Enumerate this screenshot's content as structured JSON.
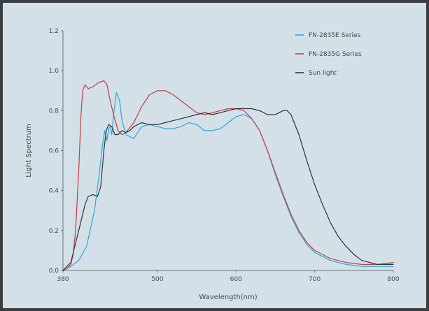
{
  "chart_data": {
    "type": "line",
    "title": "",
    "xlabel": "Wavelength(nm)",
    "ylabel": "Light Spectrum",
    "xlim": [
      380,
      800
    ],
    "ylim": [
      0,
      1.2
    ],
    "x_ticks": [
      380,
      500,
      600,
      700,
      800
    ],
    "y_ticks": [
      "0.0",
      "0.2",
      "0.4",
      "0.6",
      "0.8",
      "1.0",
      "1.2"
    ],
    "grid": false,
    "legend_position": "top-right",
    "series": [
      {
        "name": "FN-2835E Series",
        "color": "#2aa8dc",
        "points": [
          [
            380,
            0
          ],
          [
            385,
            0.01
          ],
          [
            390,
            0.02
          ],
          [
            400,
            0.05
          ],
          [
            410,
            0.12
          ],
          [
            420,
            0.3
          ],
          [
            425,
            0.45
          ],
          [
            430,
            0.62
          ],
          [
            433,
            0.7
          ],
          [
            436,
            0.65
          ],
          [
            438,
            0.71
          ],
          [
            440,
            0.72
          ],
          [
            442,
            0.68
          ],
          [
            445,
            0.8
          ],
          [
            448,
            0.89
          ],
          [
            452,
            0.85
          ],
          [
            455,
            0.75
          ],
          [
            460,
            0.68
          ],
          [
            470,
            0.66
          ],
          [
            480,
            0.72
          ],
          [
            490,
            0.73
          ],
          [
            500,
            0.72
          ],
          [
            510,
            0.71
          ],
          [
            520,
            0.71
          ],
          [
            530,
            0.72
          ],
          [
            540,
            0.74
          ],
          [
            550,
            0.73
          ],
          [
            560,
            0.7
          ],
          [
            570,
            0.7
          ],
          [
            580,
            0.71
          ],
          [
            590,
            0.74
          ],
          [
            600,
            0.77
          ],
          [
            610,
            0.78
          ],
          [
            620,
            0.76
          ],
          [
            630,
            0.7
          ],
          [
            640,
            0.6
          ],
          [
            650,
            0.48
          ],
          [
            660,
            0.37
          ],
          [
            670,
            0.27
          ],
          [
            680,
            0.19
          ],
          [
            690,
            0.13
          ],
          [
            700,
            0.09
          ],
          [
            720,
            0.05
          ],
          [
            740,
            0.03
          ],
          [
            760,
            0.02
          ],
          [
            780,
            0.02
          ],
          [
            800,
            0.02
          ]
        ]
      },
      {
        "name": "FN-2835G Series",
        "color": "#c93a44",
        "points": [
          [
            380,
            0
          ],
          [
            385,
            0.01
          ],
          [
            390,
            0.03
          ],
          [
            393,
            0.08
          ],
          [
            396,
            0.2
          ],
          [
            400,
            0.5
          ],
          [
            403,
            0.78
          ],
          [
            405,
            0.9
          ],
          [
            408,
            0.93
          ],
          [
            412,
            0.91
          ],
          [
            418,
            0.92
          ],
          [
            425,
            0.94
          ],
          [
            432,
            0.95
          ],
          [
            436,
            0.93
          ],
          [
            440,
            0.85
          ],
          [
            445,
            0.77
          ],
          [
            450,
            0.7
          ],
          [
            455,
            0.68
          ],
          [
            460,
            0.69
          ],
          [
            470,
            0.74
          ],
          [
            480,
            0.82
          ],
          [
            490,
            0.88
          ],
          [
            500,
            0.9
          ],
          [
            510,
            0.9
          ],
          [
            520,
            0.88
          ],
          [
            530,
            0.85
          ],
          [
            540,
            0.82
          ],
          [
            550,
            0.79
          ],
          [
            560,
            0.78
          ],
          [
            570,
            0.79
          ],
          [
            580,
            0.8
          ],
          [
            590,
            0.81
          ],
          [
            600,
            0.81
          ],
          [
            610,
            0.8
          ],
          [
            620,
            0.76
          ],
          [
            630,
            0.7
          ],
          [
            640,
            0.6
          ],
          [
            650,
            0.49
          ],
          [
            660,
            0.38
          ],
          [
            670,
            0.28
          ],
          [
            680,
            0.2
          ],
          [
            690,
            0.14
          ],
          [
            700,
            0.1
          ],
          [
            720,
            0.06
          ],
          [
            740,
            0.04
          ],
          [
            760,
            0.03
          ],
          [
            780,
            0.03
          ],
          [
            800,
            0.04
          ]
        ]
      },
      {
        "name": "Sun light",
        "color": "#2e3236",
        "points": [
          [
            380,
            0
          ],
          [
            390,
            0.04
          ],
          [
            400,
            0.2
          ],
          [
            408,
            0.33
          ],
          [
            412,
            0.37
          ],
          [
            418,
            0.38
          ],
          [
            424,
            0.37
          ],
          [
            428,
            0.42
          ],
          [
            432,
            0.6
          ],
          [
            435,
            0.7
          ],
          [
            438,
            0.73
          ],
          [
            442,
            0.72
          ],
          [
            446,
            0.68
          ],
          [
            450,
            0.68
          ],
          [
            455,
            0.7
          ],
          [
            460,
            0.69
          ],
          [
            465,
            0.7
          ],
          [
            470,
            0.72
          ],
          [
            480,
            0.74
          ],
          [
            490,
            0.73
          ],
          [
            500,
            0.73
          ],
          [
            510,
            0.74
          ],
          [
            520,
            0.75
          ],
          [
            530,
            0.76
          ],
          [
            540,
            0.77
          ],
          [
            550,
            0.78
          ],
          [
            560,
            0.79
          ],
          [
            570,
            0.78
          ],
          [
            580,
            0.79
          ],
          [
            590,
            0.8
          ],
          [
            600,
            0.81
          ],
          [
            610,
            0.81
          ],
          [
            620,
            0.81
          ],
          [
            630,
            0.8
          ],
          [
            640,
            0.78
          ],
          [
            650,
            0.78
          ],
          [
            655,
            0.79
          ],
          [
            660,
            0.8
          ],
          [
            665,
            0.8
          ],
          [
            670,
            0.78
          ],
          [
            680,
            0.68
          ],
          [
            690,
            0.55
          ],
          [
            700,
            0.43
          ],
          [
            710,
            0.33
          ],
          [
            720,
            0.24
          ],
          [
            730,
            0.17
          ],
          [
            740,
            0.12
          ],
          [
            750,
            0.08
          ],
          [
            760,
            0.05
          ],
          [
            770,
            0.04
          ],
          [
            780,
            0.03
          ],
          [
            790,
            0.03
          ],
          [
            800,
            0.03
          ]
        ]
      }
    ]
  }
}
